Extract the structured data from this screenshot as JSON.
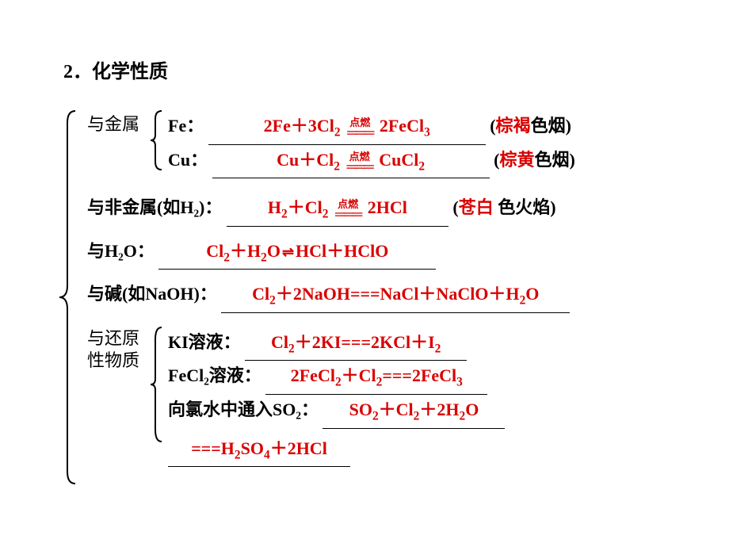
{
  "heading": "2．化学性质",
  "colors": {
    "answer": "#d90000",
    "text": "#000000",
    "background": "#ffffff",
    "underline": "#000000"
  },
  "font": {
    "body_size_pt": 22,
    "heading_size_pt": 24,
    "weight": "bold"
  },
  "sections": {
    "metal": {
      "label": "与金属",
      "fe": {
        "prefix": "Fe：",
        "equation_html": "2Fe＋3Cl<sub>2</sub> <span class='condition'><span class='condition-text'>点燃</span><span class='condition-line'>═══</span></span> 2FeCl<sub>3</sub>",
        "suffix_pre": "(",
        "suffix_ans": "棕褐",
        "suffix_post": "色烟)"
      },
      "cu": {
        "prefix": "Cu：",
        "equation_html": "Cu＋Cl<sub>2</sub> <span class='condition'><span class='condition-text'>点燃</span><span class='condition-line'>═══</span></span> CuCl<sub>2</sub>",
        "suffix_pre": "(",
        "suffix_ans": "棕黄",
        "suffix_post": "色烟)"
      }
    },
    "nonmetal": {
      "label": "与非金属(如H₂)：",
      "equation_html": "H<sub>2</sub>＋Cl<sub>2</sub> <span class='condition'><span class='condition-text'>点燃</span><span class='condition-line'>═══</span></span> 2HCl",
      "suffix_pre": "(",
      "suffix_ans": "苍白",
      "suffix_post": " 色火焰)"
    },
    "water": {
      "label": "与H₂O：",
      "equation_html": "Cl<sub>2</sub>＋H<sub>2</sub>O<span class='eq-arrow'>⇌</span>HCl＋HClO"
    },
    "base": {
      "label": "与碱(如NaOH)：",
      "equation_html": "Cl<sub>2</sub>＋2NaOH===NaCl＋NaClO＋H<sub>2</sub>O"
    },
    "reducing": {
      "label_html": "与还原<br>性物质",
      "ki": {
        "prefix": "KI溶液：",
        "equation_html": "Cl<sub>2</sub>＋2KI===2KCl＋I<sub>2</sub>"
      },
      "fecl2": {
        "prefix": "FeCl₂溶液：",
        "equation_html": "2FeCl<sub>2</sub>＋Cl<sub>2</sub>===2FeCl<sub>3</sub>"
      },
      "so2": {
        "prefix": "向氯水中通入SO₂：",
        "equation_html": "SO<sub>2</sub>＋Cl<sub>2</sub>＋2H<sub>2</sub>O",
        "equation2_html": "===H<sub>2</sub>SO<sub>4</sub>＋2HCl"
      }
    }
  }
}
